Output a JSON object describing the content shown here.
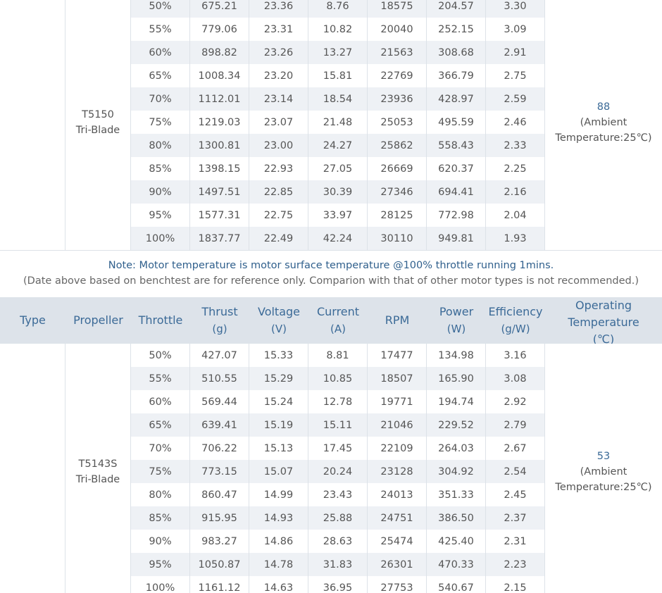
{
  "sections": [
    {
      "propeller": [
        "T5150",
        "Tri-Blade"
      ],
      "rows": [
        [
          "50%",
          "675.21",
          "23.36",
          "8.76",
          "18575",
          "204.57",
          "3.30"
        ],
        [
          "55%",
          "779.06",
          "23.31",
          "10.82",
          "20040",
          "252.15",
          "3.09"
        ],
        [
          "60%",
          "898.82",
          "23.26",
          "13.27",
          "21563",
          "308.68",
          "2.91"
        ],
        [
          "65%",
          "1008.34",
          "23.20",
          "15.81",
          "22769",
          "366.79",
          "2.75"
        ],
        [
          "70%",
          "1112.01",
          "23.14",
          "18.54",
          "23936",
          "428.97",
          "2.59"
        ],
        [
          "75%",
          "1219.03",
          "23.07",
          "21.48",
          "25053",
          "495.59",
          "2.46"
        ],
        [
          "80%",
          "1300.81",
          "23.00",
          "24.27",
          "25862",
          "558.43",
          "2.33"
        ],
        [
          "85%",
          "1398.15",
          "22.93",
          "27.05",
          "26669",
          "620.37",
          "2.25"
        ],
        [
          "90%",
          "1497.51",
          "22.85",
          "30.39",
          "27346",
          "694.41",
          "2.16"
        ],
        [
          "95%",
          "1577.31",
          "22.75",
          "33.97",
          "28125",
          "772.98",
          "2.04"
        ],
        [
          "100%",
          "1837.77",
          "22.49",
          "42.24",
          "30110",
          "949.81",
          "1.93"
        ]
      ],
      "temperature": [
        "88",
        "(Ambient",
        "Temperature:25℃)"
      ]
    },
    {
      "propeller": [
        "T5143S",
        "Tri-Blade"
      ],
      "rows": [
        [
          "50%",
          "427.07",
          "15.33",
          "8.81",
          "17477",
          "134.98",
          "3.16"
        ],
        [
          "55%",
          "510.55",
          "15.29",
          "10.85",
          "18507",
          "165.90",
          "3.08"
        ],
        [
          "60%",
          "569.44",
          "15.24",
          "12.78",
          "19771",
          "194.74",
          "2.92"
        ],
        [
          "65%",
          "639.41",
          "15.19",
          "15.11",
          "21046",
          "229.52",
          "2.79"
        ],
        [
          "70%",
          "706.22",
          "15.13",
          "17.45",
          "22109",
          "264.03",
          "2.67"
        ],
        [
          "75%",
          "773.15",
          "15.07",
          "20.24",
          "23128",
          "304.92",
          "2.54"
        ],
        [
          "80%",
          "860.47",
          "14.99",
          "23.43",
          "24013",
          "351.33",
          "2.45"
        ],
        [
          "85%",
          "915.95",
          "14.93",
          "25.88",
          "24751",
          "386.50",
          "2.37"
        ],
        [
          "90%",
          "983.27",
          "14.86",
          "28.63",
          "25474",
          "425.40",
          "2.31"
        ],
        [
          "95%",
          "1050.87",
          "14.78",
          "31.83",
          "26301",
          "470.33",
          "2.23"
        ],
        [
          "100%",
          "1161.12",
          "14.63",
          "36.95",
          "27753",
          "540.67",
          "2.15"
        ]
      ],
      "temperature": [
        "53",
        "(Ambient",
        "Temperature:25℃)"
      ]
    }
  ],
  "note": {
    "line1": "Note: Motor temperature is motor surface temperature @100% throttle running 1mins.",
    "line2": "(Date above based on benchtest are for reference only. Comparion with that of other motor types is not recommended.)"
  },
  "header": [
    [
      "Type"
    ],
    [
      "Propeller"
    ],
    [
      "Throttle"
    ],
    [
      "Thrust",
      "(g)"
    ],
    [
      "Voltage",
      "(V)"
    ],
    [
      "Current",
      "(A)"
    ],
    [
      "RPM"
    ],
    [
      "Power",
      "(W)"
    ],
    [
      "Efficiency",
      "(g/W)"
    ],
    [
      "Operating",
      "Temperature",
      "(℃)"
    ]
  ]
}
